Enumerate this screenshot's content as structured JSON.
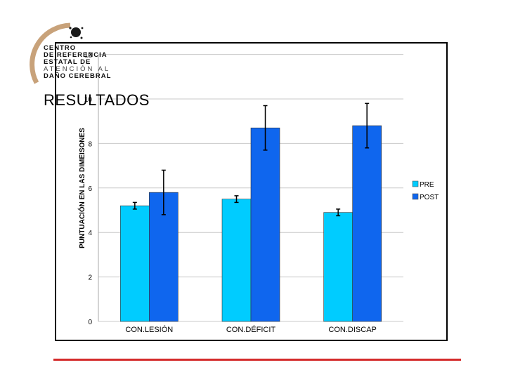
{
  "logo": {
    "lines": [
      "CENTRO",
      "DE REFERENCIA",
      "ESTATAL  DE",
      "ATENCIÓN  AL",
      "DAÑO CEREBRAL"
    ]
  },
  "heading": "RESULTADOS",
  "colors": {
    "pre": "#00ccff",
    "post": "#0f66ee",
    "error_bar": "#000000",
    "footer_line": "#d42a2a",
    "logo_arc": "#c8a27a"
  },
  "chart_data": {
    "type": "bar",
    "categories": [
      "CON.LESIÓN",
      "CON.DÉFICIT",
      "CON.DISCAP"
    ],
    "series": [
      {
        "name": "PRE",
        "values": [
          5.2,
          5.5,
          4.9
        ],
        "error": [
          0.15,
          0.15,
          0.15
        ]
      },
      {
        "name": "POST",
        "values": [
          5.8,
          8.7,
          8.8
        ],
        "error": [
          1.0,
          1.0,
          1.0
        ]
      }
    ],
    "ylabel": "PUNTUACIÓN EN LAS DIMEISONES",
    "yticks": [
      0,
      2,
      4,
      6,
      8,
      10,
      12
    ],
    "ylim": [
      0,
      12
    ],
    "legend": "right",
    "grid": true
  }
}
